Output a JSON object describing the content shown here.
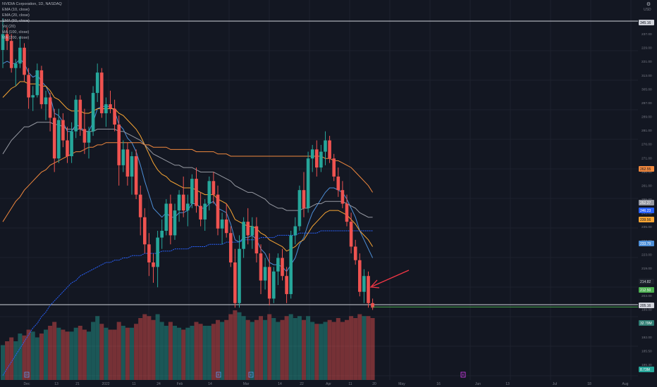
{
  "header": {
    "symbol_line": "NVIDIA Corporation, 1D, NASDAQ",
    "currency": "USD",
    "indicators": [
      "EMA (10, close)",
      "EMA (20, close)",
      "EMA (50, close)",
      "Vol (20)",
      "MA (100, close)",
      "MA (200, close)"
    ]
  },
  "colors": {
    "background": "#131722",
    "grid": "#1e222d",
    "up_candle": "#26a69a",
    "down_candle": "#ef5350",
    "ema10": "#4d8fd8",
    "ema20": "#f7a534",
    "ema50": "#9598a1",
    "ma100": "#f0883e",
    "ma200": "#2962ff",
    "support_line": "#4caf50",
    "horizontal_lines": "#d1d4dc",
    "arrow": "#f23645"
  },
  "chart_data": {
    "type": "candlestick",
    "price_axis_ticks": [
      "237.00",
      "229.00",
      "221.00",
      "313.00",
      "305.00",
      "297.00",
      "289.00",
      "281.00",
      "276.00",
      "271.00",
      "266.00",
      "261.00",
      "255.00",
      "245.00",
      "235.00",
      "227.00",
      "223.00",
      "219.00",
      "207.00",
      "203.00",
      "199.00",
      "195.50",
      "192.00",
      "185.50",
      "185.30"
    ],
    "price_labels": {
      "top_line": "345.16",
      "ma100": "262.55",
      "ema50": "252.27",
      "ma200": "246.23",
      "ema20": "239.56",
      "ema10": "233.79",
      "last_high": "214.82",
      "last_price": "212.50",
      "bottom_line": "205.16",
      "volume": "32.79M",
      "volume_bottom": "8.73M"
    },
    "x_axis_labels": [
      "Dec",
      "13",
      "21",
      "2022",
      "11",
      "24",
      "Feb",
      "14",
      "Mar",
      "14",
      "22",
      "Apr",
      "11",
      "20",
      "May",
      "16",
      "Jun",
      "13",
      "Jul",
      "18",
      "Aug"
    ],
    "events": [
      "D",
      "E",
      "E",
      "E"
    ],
    "candles": [
      [
        326,
        340,
        318,
        333
      ],
      [
        333,
        336,
        326,
        330
      ],
      [
        330,
        333,
        316,
        318
      ],
      [
        318,
        322,
        310,
        320
      ],
      [
        320,
        332,
        318,
        327
      ],
      [
        327,
        329,
        312,
        315
      ],
      [
        315,
        318,
        300,
        305
      ],
      [
        305,
        310,
        299,
        306
      ],
      [
        306,
        320,
        305,
        317
      ],
      [
        317,
        319,
        300,
        302
      ],
      [
        302,
        308,
        295,
        305
      ],
      [
        305,
        307,
        290,
        296
      ],
      [
        296,
        300,
        272,
        278
      ],
      [
        278,
        300,
        276,
        295
      ],
      [
        295,
        298,
        283,
        286
      ],
      [
        286,
        292,
        276,
        279
      ],
      [
        279,
        294,
        276,
        290
      ],
      [
        290,
        306,
        287,
        304
      ],
      [
        304,
        306,
        288,
        291
      ],
      [
        291,
        300,
        280,
        285
      ],
      [
        285,
        292,
        278,
        290
      ],
      [
        290,
        310,
        288,
        307
      ],
      [
        307,
        320,
        303,
        316
      ],
      [
        316,
        318,
        296,
        298
      ],
      [
        298,
        305,
        292,
        302
      ],
      [
        302,
        308,
        298,
        300
      ],
      [
        300,
        304,
        290,
        293
      ],
      [
        293,
        297,
        266,
        275
      ],
      [
        275,
        286,
        272,
        282
      ],
      [
        282,
        285,
        266,
        270
      ],
      [
        270,
        281,
        262,
        279
      ],
      [
        279,
        282,
        260,
        262
      ],
      [
        262,
        266,
        244,
        252
      ],
      [
        252,
        256,
        236,
        240
      ],
      [
        240,
        245,
        226,
        232
      ],
      [
        232,
        236,
        223,
        230
      ],
      [
        230,
        246,
        221,
        243
      ],
      [
        243,
        251,
        238,
        246
      ],
      [
        246,
        260,
        244,
        258
      ],
      [
        258,
        262,
        240,
        244
      ],
      [
        244,
        258,
        242,
        255
      ],
      [
        255,
        264,
        250,
        262
      ],
      [
        262,
        270,
        252,
        255
      ],
      [
        255,
        262,
        248,
        258
      ],
      [
        258,
        271,
        256,
        269
      ],
      [
        269,
        274,
        254,
        257
      ],
      [
        257,
        263,
        248,
        251
      ],
      [
        251,
        260,
        246,
        258
      ],
      [
        258,
        270,
        255,
        268
      ],
      [
        268,
        272,
        258,
        262
      ],
      [
        262,
        266,
        244,
        247
      ],
      [
        247,
        254,
        240,
        251
      ],
      [
        251,
        258,
        243,
        245
      ],
      [
        245,
        248,
        230,
        232
      ],
      [
        232,
        238,
        212,
        214
      ],
      [
        214,
        244,
        212,
        238
      ],
      [
        238,
        252,
        234,
        250
      ],
      [
        250,
        256,
        240,
        244
      ],
      [
        244,
        252,
        238,
        248
      ],
      [
        248,
        252,
        232,
        236
      ],
      [
        236,
        240,
        218,
        224
      ],
      [
        224,
        234,
        220,
        230
      ],
      [
        230,
        236,
        213,
        216
      ],
      [
        216,
        230,
        214,
        228
      ],
      [
        228,
        236,
        222,
        234
      ],
      [
        234,
        238,
        224,
        226
      ],
      [
        226,
        230,
        214,
        218
      ],
      [
        218,
        246,
        216,
        244
      ],
      [
        244,
        252,
        240,
        248
      ],
      [
        248,
        266,
        246,
        264
      ],
      [
        264,
        272,
        252,
        256
      ],
      [
        256,
        281,
        254,
        278
      ],
      [
        278,
        284,
        272,
        282
      ],
      [
        282,
        286,
        270,
        274
      ],
      [
        274,
        284,
        272,
        281
      ],
      [
        281,
        290,
        275,
        286
      ],
      [
        286,
        288,
        276,
        278
      ],
      [
        278,
        280,
        268,
        270
      ],
      [
        270,
        274,
        261,
        264
      ],
      [
        264,
        268,
        256,
        258
      ],
      [
        258,
        262,
        248,
        250
      ],
      [
        250,
        254,
        236,
        239
      ],
      [
        239,
        242,
        231,
        233
      ],
      [
        233,
        236,
        217,
        219
      ],
      [
        219,
        229,
        214,
        226
      ],
      [
        226,
        228,
        212,
        214
      ],
      [
        214,
        216,
        211,
        212
      ]
    ],
    "series": [
      {
        "name": "EMA (10, close)",
        "values": [
          320,
          321,
          320,
          320,
          322,
          320,
          316,
          314,
          315,
          312,
          310,
          306,
          298,
          297,
          294,
          290,
          290,
          293,
          292,
          290,
          290,
          294,
          300,
          301,
          301,
          301,
          299,
          293,
          291,
          287,
          285,
          281,
          275,
          268,
          262,
          256,
          254,
          252,
          254,
          252,
          252,
          254,
          254,
          255,
          258,
          258,
          256,
          256,
          258,
          259,
          256,
          255,
          254,
          249,
          242,
          241,
          243,
          243,
          244,
          242,
          238,
          236,
          232,
          231,
          231,
          230,
          228,
          231,
          234,
          240,
          243,
          249,
          254,
          257,
          260,
          263,
          265,
          265,
          264,
          263,
          260,
          256,
          252,
          246,
          242,
          238,
          234
        ]
      },
      {
        "name": "EMA (20, close)",
        "values": [
          305,
          307,
          309,
          310,
          312,
          312,
          311,
          311,
          311,
          310,
          310,
          308,
          305,
          304,
          302,
          300,
          299,
          299,
          299,
          298,
          298,
          299,
          300,
          300,
          300,
          300,
          300,
          298,
          297,
          295,
          293,
          291,
          288,
          284,
          280,
          276,
          273,
          271,
          270,
          268,
          267,
          266,
          265,
          265,
          265,
          264,
          263,
          262,
          262,
          262,
          260,
          259,
          258,
          255,
          251,
          250,
          249,
          248,
          248,
          247,
          245,
          244,
          242,
          241,
          240,
          239,
          237,
          238,
          239,
          241,
          242,
          245,
          248,
          250,
          252,
          254,
          255,
          255,
          255,
          254,
          253,
          251,
          249,
          246,
          244,
          242,
          239
        ]
      },
      {
        "name": "EMA (50, close)",
        "values": [
          280,
          283,
          286,
          288,
          290,
          292,
          292,
          293,
          294,
          294,
          294,
          294,
          293,
          293,
          292,
          291,
          291,
          291,
          291,
          290,
          290,
          290,
          291,
          291,
          291,
          291,
          291,
          290,
          290,
          289,
          288,
          287,
          286,
          284,
          282,
          280,
          279,
          278,
          277,
          276,
          275,
          275,
          274,
          274,
          274,
          273,
          272,
          272,
          272,
          272,
          271,
          270,
          269,
          268,
          266,
          265,
          264,
          263,
          263,
          262,
          261,
          260,
          258,
          257,
          256,
          256,
          255,
          255,
          255,
          255,
          256,
          256,
          257,
          258,
          258,
          259,
          259,
          259,
          259,
          259,
          258,
          257,
          256,
          254,
          253,
          252,
          252
        ]
      },
      {
        "name": "MA (100, close)",
        "values": [
          250,
          253,
          256,
          259,
          261,
          264,
          266,
          268,
          270,
          272,
          273,
          275,
          276,
          277,
          278,
          279,
          280,
          281,
          281,
          282,
          283,
          283,
          284,
          284,
          285,
          285,
          285,
          285,
          285,
          285,
          285,
          285,
          285,
          284,
          284,
          283,
          283,
          283,
          283,
          282,
          282,
          282,
          282,
          282,
          282,
          281,
          281,
          281,
          281,
          281,
          280,
          280,
          280,
          279,
          279,
          279,
          279,
          279,
          279,
          279,
          279,
          279,
          279,
          279,
          279,
          279,
          279,
          279,
          279,
          279,
          279,
          279,
          279,
          279,
          279,
          278,
          278,
          277,
          277,
          276,
          275,
          274,
          272,
          270,
          268,
          266,
          263
        ]
      },
      {
        "name": "MA (200, close)",
        "values": [
          182,
          185,
          188,
          191,
          194,
          197,
          200,
          203,
          205,
          208,
          210,
          213,
          215,
          217,
          219,
          221,
          223,
          224,
          226,
          227,
          228,
          229,
          230,
          231,
          232,
          232,
          233,
          233,
          234,
          234,
          235,
          235,
          235,
          236,
          236,
          236,
          236,
          237,
          237,
          237,
          238,
          238,
          238,
          238,
          239,
          239,
          239,
          239,
          240,
          240,
          240,
          240,
          241,
          241,
          241,
          241,
          242,
          242,
          242,
          242,
          243,
          243,
          243,
          243,
          244,
          244,
          244,
          244,
          244,
          245,
          245,
          245,
          245,
          245,
          246,
          246,
          246,
          246,
          246,
          246,
          246,
          246,
          246,
          246,
          246,
          246,
          246
        ]
      }
    ],
    "volume": [
      18,
      20,
      22,
      20,
      24,
      23,
      26,
      25,
      22,
      24,
      26,
      28,
      30,
      27,
      26,
      25,
      25,
      27,
      28,
      26,
      25,
      30,
      33,
      29,
      27,
      26,
      26,
      30,
      28,
      27,
      27,
      29,
      32,
      34,
      33,
      31,
      34,
      30,
      28,
      30,
      28,
      27,
      26,
      27,
      28,
      30,
      29,
      28,
      28,
      29,
      31,
      30,
      31,
      34,
      36,
      35,
      33,
      31,
      30,
      31,
      33,
      31,
      34,
      32,
      30,
      31,
      33,
      34,
      32,
      33,
      31,
      33,
      30,
      29,
      29,
      30,
      31,
      30,
      32,
      30,
      31,
      33,
      32,
      34,
      33,
      33,
      32
    ]
  }
}
